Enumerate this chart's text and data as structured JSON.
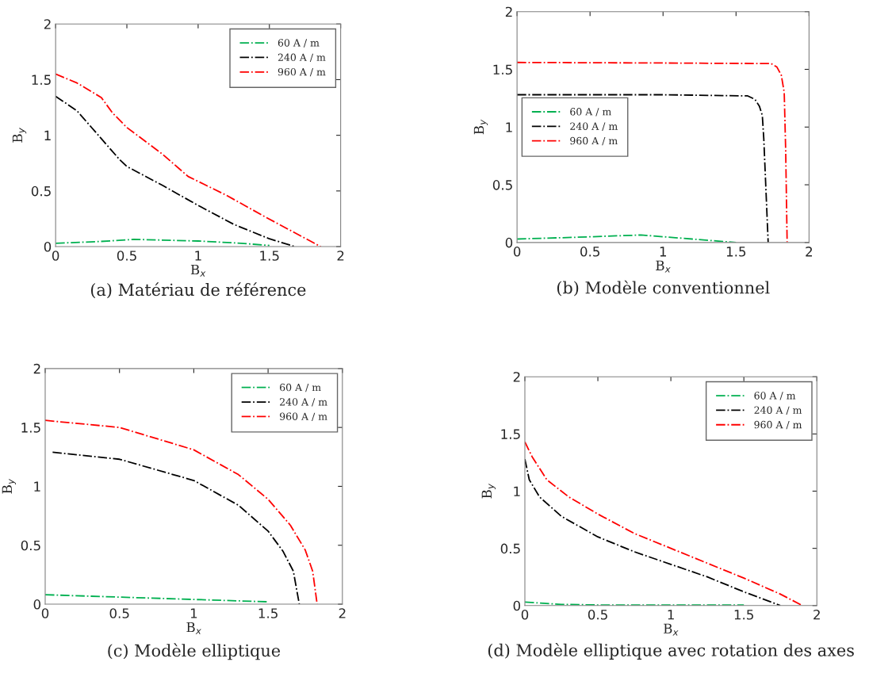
{
  "chart_data": [
    {
      "type": "line",
      "title": "(a) Matériau de référence",
      "xlabel": "B$_{x}$",
      "ylabel": "B$_{y}$",
      "xlim": [
        0,
        2
      ],
      "ylim": [
        0,
        2
      ],
      "xticks": [
        0,
        0.5,
        1,
        1.5,
        2
      ],
      "yticks": [
        0,
        0.5,
        1,
        1.5,
        2
      ],
      "grid": false,
      "legend": "top right",
      "line_style": "dashdot",
      "marker": "none",
      "series": [
        {
          "name": "60 A / m",
          "color": "#00b050",
          "x": [
            0,
            0.3,
            0.55,
            1,
            1.3,
            1.5
          ],
          "values": [
            0.03,
            0.045,
            0.065,
            0.05,
            0.03,
            0.01
          ]
        },
        {
          "name": "240 A / m",
          "color": "#000000",
          "x": [
            0,
            0.15,
            0.3,
            0.45,
            0.5,
            0.75,
            1,
            1.25,
            1.5,
            1.68
          ],
          "values": [
            1.35,
            1.22,
            1.0,
            0.78,
            0.72,
            0.55,
            0.37,
            0.2,
            0.07,
            0
          ]
        },
        {
          "name": "960 A / m",
          "color": "#ff0000",
          "x": [
            0,
            0.15,
            0.32,
            0.4,
            0.5,
            0.75,
            0.93,
            1.2,
            1.48,
            1.86
          ],
          "values": [
            1.55,
            1.47,
            1.34,
            1.2,
            1.07,
            0.83,
            0.63,
            0.46,
            0.26,
            0
          ]
        }
      ]
    },
    {
      "type": "line",
      "title": "(b) Modèle conventionnel",
      "xlabel": "B$_{x}$",
      "ylabel": "B$_{y}$",
      "xlim": [
        0,
        2
      ],
      "ylim": [
        0,
        2
      ],
      "xticks": [
        0,
        0.5,
        1,
        1.5,
        2
      ],
      "yticks": [
        0,
        0.5,
        1,
        1.5,
        2
      ],
      "grid": false,
      "legend": "left",
      "line_style": "dashdot",
      "marker": "none",
      "series": [
        {
          "name": "60 A / m",
          "color": "#00b050",
          "x": [
            0,
            0.4,
            0.85,
            1.2,
            1.5
          ],
          "values": [
            0.03,
            0.045,
            0.065,
            0.03,
            0
          ]
        },
        {
          "name": "240 A / m",
          "color": "#000000",
          "x": [
            0,
            1.0,
            1.58,
            1.63,
            1.66,
            1.68,
            1.69,
            1.71,
            1.72
          ],
          "values": [
            1.28,
            1.28,
            1.27,
            1.24,
            1.18,
            1.1,
            0.9,
            0.3,
            0
          ]
        },
        {
          "name": "960 A / m",
          "color": "#ff0000",
          "x": [
            0,
            1.0,
            1.74,
            1.78,
            1.81,
            1.83,
            1.84,
            1.85
          ],
          "values": [
            1.56,
            1.555,
            1.55,
            1.52,
            1.45,
            1.3,
            0.8,
            0
          ]
        }
      ]
    },
    {
      "type": "line",
      "title": "(c) Modèle elliptique",
      "xlabel": "B$_{x}$",
      "ylabel": "B$_{y}$",
      "xlim": [
        0,
        2
      ],
      "ylim": [
        0,
        2
      ],
      "xticks": [
        0,
        0.5,
        1,
        1.5,
        2
      ],
      "yticks": [
        0,
        0.5,
        1,
        1.5,
        2
      ],
      "grid": false,
      "legend": "top right",
      "line_style": "dashdot",
      "marker": "none",
      "series": [
        {
          "name": "60 A / m",
          "color": "#00b050",
          "x": [
            0,
            0.5,
            1,
            1.5
          ],
          "values": [
            0.08,
            0.06,
            0.04,
            0.02
          ]
        },
        {
          "name": "240 A / m",
          "color": "#000000",
          "x": [
            0.05,
            0.5,
            1.0,
            1.3,
            1.5,
            1.6,
            1.67,
            1.71
          ],
          "values": [
            1.29,
            1.23,
            1.05,
            0.84,
            0.62,
            0.45,
            0.28,
            0
          ]
        },
        {
          "name": "960 A / m",
          "color": "#ff0000",
          "x": [
            0,
            0.5,
            1.0,
            1.3,
            1.5,
            1.65,
            1.75,
            1.8,
            1.83
          ],
          "values": [
            1.56,
            1.5,
            1.31,
            1.1,
            0.89,
            0.67,
            0.46,
            0.28,
            0
          ]
        }
      ]
    },
    {
      "type": "line",
      "title": "(d) Modèle elliptique avec rotation des axes",
      "xlabel": "B$_{x}$",
      "ylabel": "B$_{y}$",
      "xlim": [
        0,
        2
      ],
      "ylim": [
        0,
        2
      ],
      "xticks": [
        0,
        0.5,
        1,
        1.5,
        2
      ],
      "yticks": [
        0,
        0.5,
        1,
        1.5,
        2
      ],
      "grid": false,
      "legend": "top right",
      "line_style": "dashdot",
      "marker": "none",
      "series": [
        {
          "name": "60 A / m",
          "color": "#00b050",
          "x": [
            0,
            0.25,
            0.5,
            1,
            1.5
          ],
          "values": [
            0.03,
            0.01,
            0.005,
            0.005,
            0.005
          ]
        },
        {
          "name": "240 A / m",
          "color": "#000000",
          "x": [
            0,
            0.03,
            0.1,
            0.25,
            0.5,
            0.75,
            1,
            1.25,
            1.5,
            1.75
          ],
          "values": [
            1.28,
            1.1,
            0.95,
            0.78,
            0.6,
            0.47,
            0.36,
            0.25,
            0.12,
            0
          ]
        },
        {
          "name": "960 A / m",
          "color": "#ff0000",
          "x": [
            0,
            0.05,
            0.15,
            0.3,
            0.5,
            0.75,
            1,
            1.25,
            1.5,
            1.75,
            1.9
          ],
          "values": [
            1.43,
            1.3,
            1.1,
            0.95,
            0.8,
            0.63,
            0.5,
            0.37,
            0.24,
            0.1,
            0
          ]
        }
      ]
    }
  ]
}
